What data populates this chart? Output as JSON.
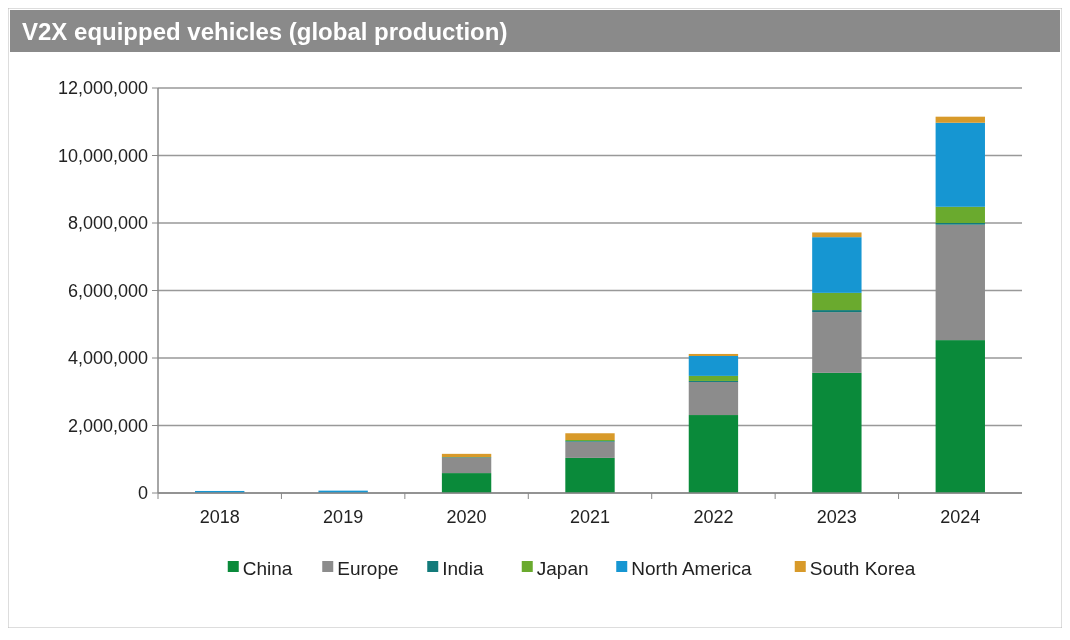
{
  "chart_data": {
    "type": "bar",
    "title": "V2X equipped vehicles (global production)",
    "stacked": true,
    "grid": "y",
    "legend": "bottom",
    "categories": [
      "2018",
      "2019",
      "2020",
      "2021",
      "2022",
      "2023",
      "2024"
    ],
    "series": [
      {
        "name": "China",
        "color": "#0a8a3a",
        "values": [
          0,
          0,
          590000,
          1040000,
          2310000,
          3560000,
          4530000
        ]
      },
      {
        "name": "Europe",
        "color": "#8c8c8c",
        "values": [
          0,
          0,
          450000,
          480000,
          980000,
          1800000,
          3420000
        ]
      },
      {
        "name": "India",
        "color": "#127a7a",
        "values": [
          0,
          0,
          20000,
          20000,
          30000,
          60000,
          50000
        ]
      },
      {
        "name": "Japan",
        "color": "#6aaa2e",
        "values": [
          0,
          0,
          0,
          30000,
          150000,
          510000,
          480000
        ]
      },
      {
        "name": "North America",
        "color": "#1696d2",
        "values": [
          60000,
          70000,
          0,
          0,
          590000,
          1650000,
          2490000
        ]
      },
      {
        "name": "South Korea",
        "color": "#d89a2a",
        "values": [
          0,
          0,
          100000,
          200000,
          60000,
          140000,
          180000
        ]
      }
    ],
    "ylim": [
      0,
      12000000
    ],
    "yticks": [
      {
        "value": 0,
        "label": "0"
      },
      {
        "value": 2000000,
        "label": "2,000,000"
      },
      {
        "value": 4000000,
        "label": "4,000,000"
      },
      {
        "value": 6000000,
        "label": "6,000,000"
      },
      {
        "value": 8000000,
        "label": "8,000,000"
      },
      {
        "value": 10000000,
        "label": "10,000,000"
      },
      {
        "value": 12000000,
        "label": "12,000,000"
      }
    ]
  }
}
